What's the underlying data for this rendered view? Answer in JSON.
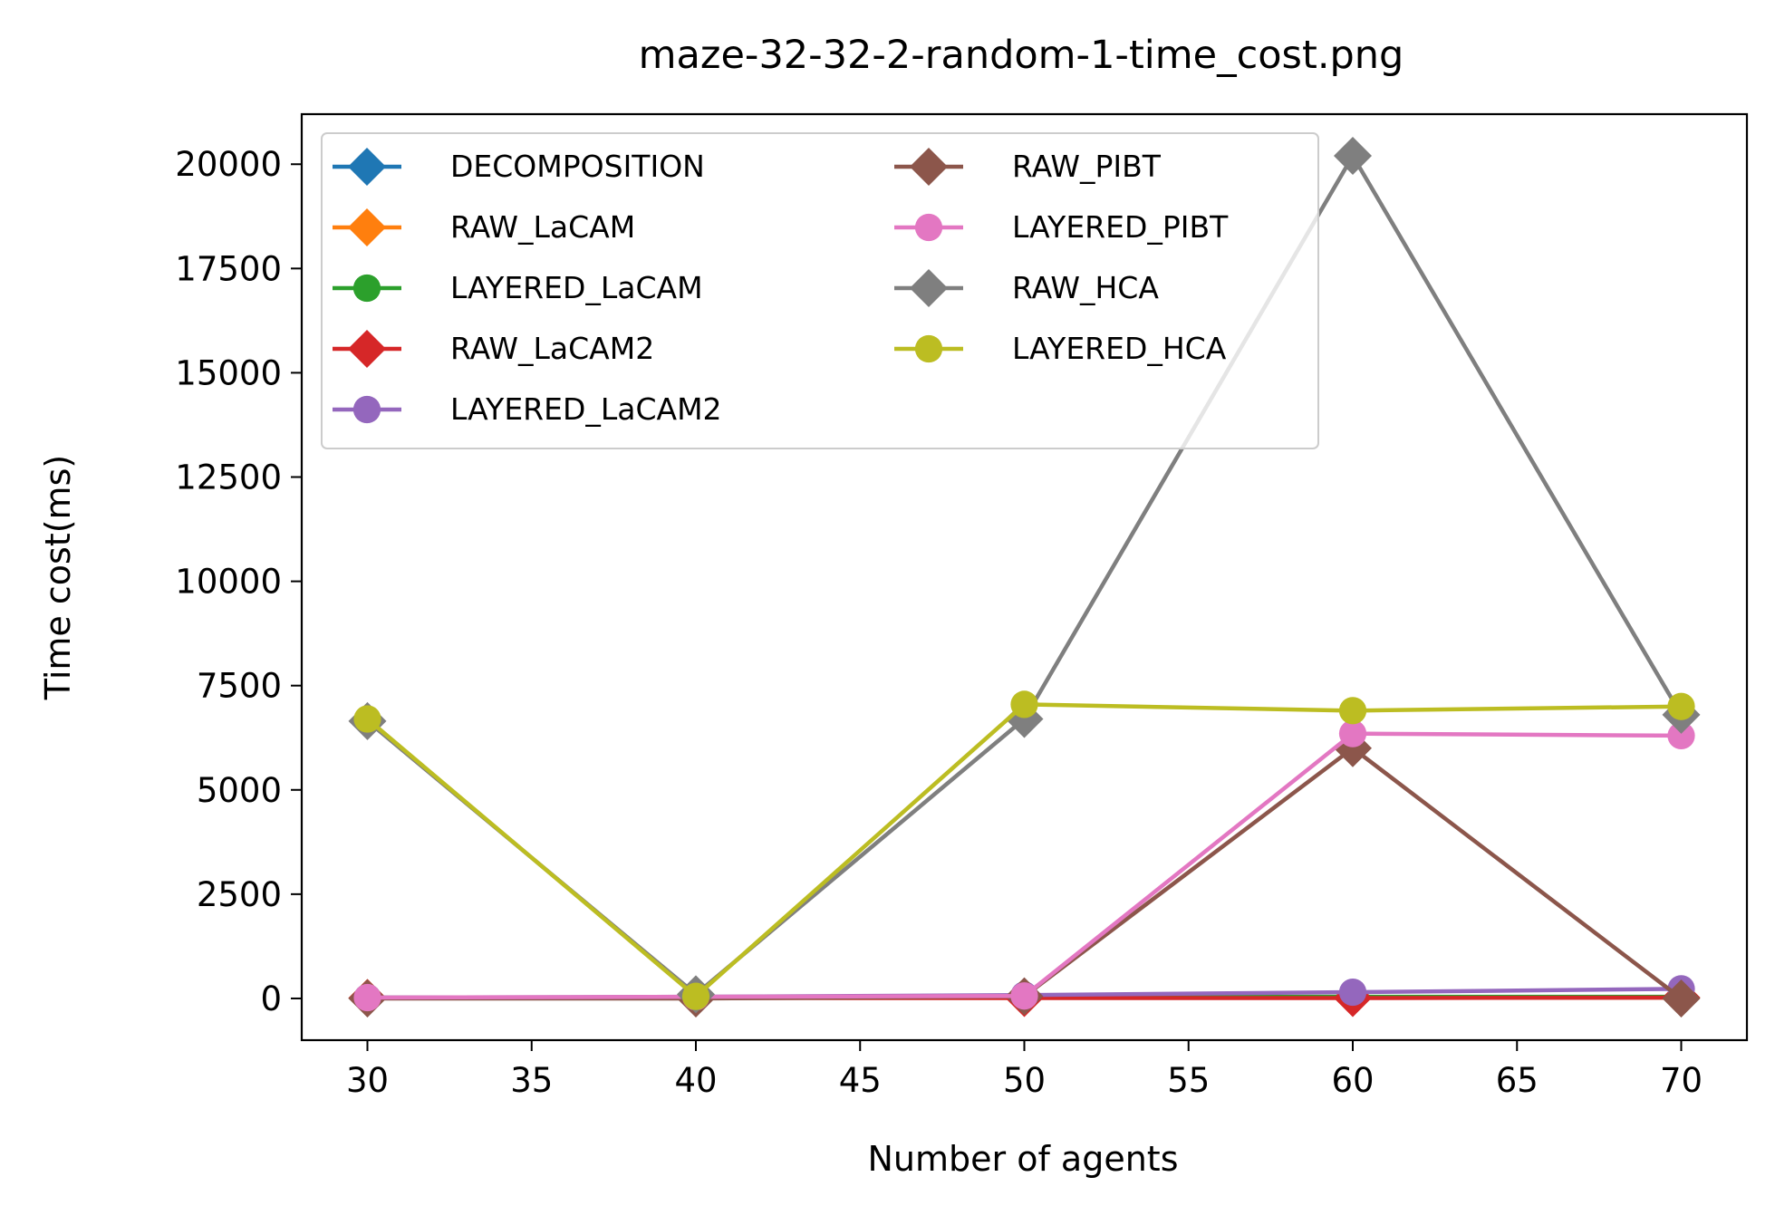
{
  "chart_data": {
    "type": "line",
    "title": "maze-32-32-2-random-1-time_cost.png",
    "xlabel": "Number of agents",
    "ylabel": "Time cost(ms)",
    "x": [
      30,
      40,
      50,
      60,
      70
    ],
    "xlim": [
      28,
      72
    ],
    "ylim": [
      -1000,
      21200
    ],
    "xticks": [
      30,
      35,
      40,
      45,
      50,
      55,
      60,
      65,
      70
    ],
    "yticks": [
      0,
      2500,
      5000,
      7500,
      10000,
      12500,
      15000,
      17500,
      20000
    ],
    "grid": false,
    "legend_position": "upper-left",
    "legend_columns": 2,
    "series": [
      {
        "name": "DECOMPOSITION",
        "color": "#1f77b4",
        "marker": "diamond",
        "values": [
          10,
          20,
          30,
          20,
          20
        ]
      },
      {
        "name": "RAW_LaCAM",
        "color": "#ff7f0e",
        "marker": "diamond",
        "values": [
          10,
          20,
          30,
          20,
          20
        ]
      },
      {
        "name": "LAYERED_LaCAM",
        "color": "#2ca02c",
        "marker": "circle",
        "values": [
          20,
          30,
          40,
          40,
          40
        ]
      },
      {
        "name": "RAW_LaCAM2",
        "color": "#d62728",
        "marker": "diamond",
        "values": [
          10,
          10,
          10,
          10,
          20
        ]
      },
      {
        "name": "LAYERED_LaCAM2",
        "color": "#9467bd",
        "marker": "circle",
        "values": [
          20,
          40,
          80,
          150,
          230
        ]
      },
      {
        "name": "RAW_PIBT",
        "color": "#8c564b",
        "marker": "diamond",
        "values": [
          0,
          0,
          50,
          6000,
          0
        ]
      },
      {
        "name": "LAYERED_PIBT",
        "color": "#e377c2",
        "marker": "circle",
        "values": [
          20,
          40,
          60,
          6350,
          6300
        ]
      },
      {
        "name": "RAW_HCA",
        "color": "#7f7f7f",
        "marker": "diamond",
        "values": [
          6650,
          100,
          6700,
          20200,
          6800
        ]
      },
      {
        "name": "LAYERED_HCA",
        "color": "#bcbd22",
        "marker": "circle",
        "values": [
          6700,
          50,
          7050,
          6900,
          7000
        ]
      }
    ]
  }
}
